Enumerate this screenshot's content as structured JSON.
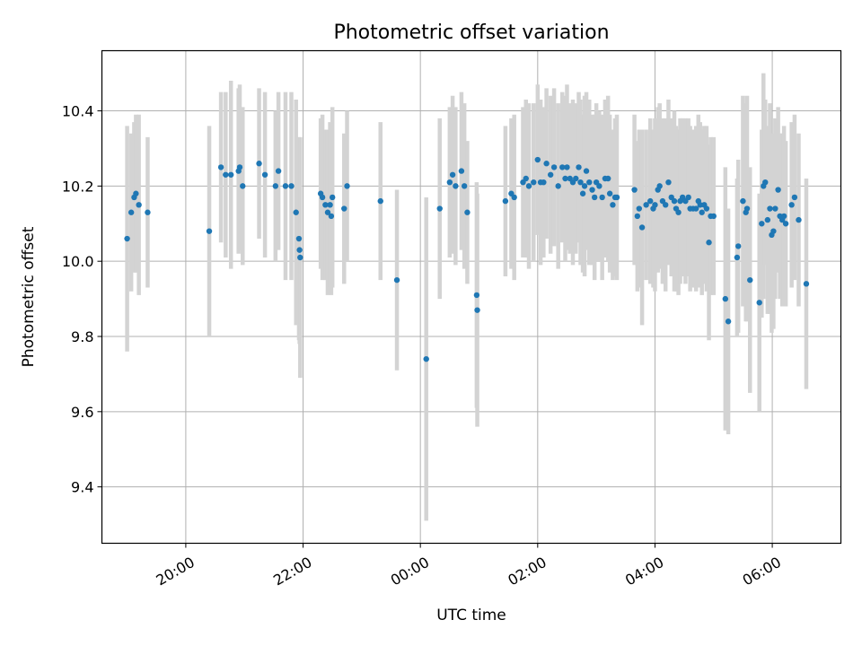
{
  "chart_data": {
    "type": "scatter",
    "title": "Photometric offset variation",
    "xlabel": "UTC time",
    "ylabel": "Photometric offset",
    "grid": true,
    "x_range_hours": [
      18.57,
      31.17
    ],
    "ylim": [
      9.25,
      10.56
    ],
    "x_ticks": [
      {
        "hour": 20,
        "label": "20:00"
      },
      {
        "hour": 22,
        "label": "22:00"
      },
      {
        "hour": 24,
        "label": "00:00"
      },
      {
        "hour": 26,
        "label": "02:00"
      },
      {
        "hour": 28,
        "label": "04:00"
      },
      {
        "hour": 30,
        "label": "06:00"
      }
    ],
    "y_ticks": [
      9.4,
      9.6,
      9.8,
      10.0,
      10.2,
      10.4
    ],
    "y_tick_labels": [
      "9.4",
      "9.6",
      "9.8",
      "10.0",
      "10.2",
      "10.4"
    ],
    "colors": {
      "point": "#1f77b4",
      "error_bar": "#d3d3d3",
      "grid": "#b0b0b0"
    },
    "series": [
      {
        "points": [
          [
            19.0,
            10.06,
            0.3
          ],
          [
            19.07,
            10.13,
            0.21
          ],
          [
            19.12,
            10.17,
            0.2
          ],
          [
            19.15,
            10.18,
            0.21
          ],
          [
            19.2,
            10.15,
            0.24
          ],
          [
            19.35,
            10.13,
            0.2
          ],
          [
            20.4,
            10.08,
            0.28
          ],
          [
            20.6,
            10.25,
            0.2
          ],
          [
            20.68,
            10.23,
            0.22
          ],
          [
            20.77,
            10.23,
            0.25
          ],
          [
            20.9,
            10.24,
            0.22
          ],
          [
            20.92,
            10.25,
            0.22
          ],
          [
            20.97,
            10.2,
            0.21
          ],
          [
            21.25,
            10.26,
            0.2
          ],
          [
            21.35,
            10.23,
            0.22
          ],
          [
            21.53,
            10.2,
            0.2
          ],
          [
            21.58,
            10.24,
            0.21
          ],
          [
            21.7,
            10.2,
            0.25
          ],
          [
            21.8,
            10.2,
            0.25
          ],
          [
            21.88,
            10.13,
            0.3
          ],
          [
            21.93,
            10.06,
            0.27
          ],
          [
            21.94,
            10.03,
            0.25
          ],
          [
            21.95,
            10.01,
            0.32
          ],
          [
            22.3,
            10.18,
            0.2
          ],
          [
            22.33,
            10.17,
            0.22
          ],
          [
            22.38,
            10.15,
            0.2
          ],
          [
            22.42,
            10.13,
            0.22
          ],
          [
            22.46,
            10.15,
            0.22
          ],
          [
            22.48,
            10.12,
            0.21
          ],
          [
            22.5,
            10.17,
            0.24
          ],
          [
            22.7,
            10.14,
            0.2
          ],
          [
            22.75,
            10.2,
            0.2
          ],
          [
            23.32,
            10.16,
            0.21
          ],
          [
            23.6,
            9.95,
            0.24
          ],
          [
            24.1,
            9.74,
            0.43
          ],
          [
            24.33,
            10.14,
            0.24
          ],
          [
            24.5,
            10.21,
            0.2
          ],
          [
            24.55,
            10.23,
            0.21
          ],
          [
            24.6,
            10.2,
            0.21
          ],
          [
            24.7,
            10.24,
            0.21
          ],
          [
            24.75,
            10.2,
            0.22
          ],
          [
            24.8,
            10.13,
            0.19
          ],
          [
            24.96,
            9.91,
            0.3
          ],
          [
            24.97,
            9.87,
            0.31
          ],
          [
            25.45,
            10.16,
            0.2
          ],
          [
            25.55,
            10.18,
            0.2
          ],
          [
            25.6,
            10.17,
            0.22
          ],
          [
            25.75,
            10.21,
            0.2
          ],
          [
            25.8,
            10.22,
            0.21
          ],
          [
            25.85,
            10.2,
            0.22
          ],
          [
            25.93,
            10.21,
            0.21
          ],
          [
            26.0,
            10.27,
            0.2
          ],
          [
            26.05,
            10.21,
            0.22
          ],
          [
            26.1,
            10.21,
            0.2
          ],
          [
            26.15,
            10.26,
            0.2
          ],
          [
            26.22,
            10.23,
            0.21
          ],
          [
            26.28,
            10.25,
            0.21
          ],
          [
            26.35,
            10.2,
            0.22
          ],
          [
            26.42,
            10.25,
            0.2
          ],
          [
            26.47,
            10.22,
            0.22
          ],
          [
            26.5,
            10.25,
            0.22
          ],
          [
            26.55,
            10.22,
            0.2
          ],
          [
            26.6,
            10.21,
            0.22
          ],
          [
            26.65,
            10.22,
            0.2
          ],
          [
            26.7,
            10.25,
            0.2
          ],
          [
            26.73,
            10.21,
            0.22
          ],
          [
            26.77,
            10.18,
            0.21
          ],
          [
            26.8,
            10.2,
            0.24
          ],
          [
            26.83,
            10.24,
            0.21
          ],
          [
            26.88,
            10.21,
            0.22
          ],
          [
            26.93,
            10.19,
            0.2
          ],
          [
            26.97,
            10.17,
            0.22
          ],
          [
            27.0,
            10.21,
            0.21
          ],
          [
            27.05,
            10.2,
            0.2
          ],
          [
            27.1,
            10.17,
            0.22
          ],
          [
            27.15,
            10.22,
            0.21
          ],
          [
            27.2,
            10.22,
            0.22
          ],
          [
            27.23,
            10.18,
            0.21
          ],
          [
            27.28,
            10.15,
            0.2
          ],
          [
            27.32,
            10.17,
            0.21
          ],
          [
            27.35,
            10.17,
            0.22
          ],
          [
            27.65,
            10.19,
            0.2
          ],
          [
            27.7,
            10.12,
            0.2
          ],
          [
            27.73,
            10.14,
            0.21
          ],
          [
            27.78,
            10.09,
            0.26
          ],
          [
            27.85,
            10.15,
            0.2
          ],
          [
            27.92,
            10.16,
            0.22
          ],
          [
            27.97,
            10.14,
            0.21
          ],
          [
            28.0,
            10.15,
            0.23
          ],
          [
            28.05,
            10.19,
            0.22
          ],
          [
            28.08,
            10.2,
            0.22
          ],
          [
            28.13,
            10.16,
            0.22
          ],
          [
            28.18,
            10.15,
            0.23
          ],
          [
            28.23,
            10.21,
            0.22
          ],
          [
            28.28,
            10.17,
            0.21
          ],
          [
            28.33,
            10.16,
            0.24
          ],
          [
            28.36,
            10.14,
            0.22
          ],
          [
            28.4,
            10.13,
            0.22
          ],
          [
            28.43,
            10.16,
            0.22
          ],
          [
            28.47,
            10.17,
            0.21
          ],
          [
            28.52,
            10.16,
            0.22
          ],
          [
            28.57,
            10.17,
            0.21
          ],
          [
            28.6,
            10.14,
            0.22
          ],
          [
            28.65,
            10.14,
            0.21
          ],
          [
            28.7,
            10.14,
            0.22
          ],
          [
            28.74,
            10.16,
            0.23
          ],
          [
            28.77,
            10.15,
            0.22
          ],
          [
            28.8,
            10.13,
            0.22
          ],
          [
            28.84,
            10.15,
            0.21
          ],
          [
            28.88,
            10.14,
            0.22
          ],
          [
            28.92,
            10.05,
            0.26
          ],
          [
            28.95,
            10.12,
            0.21
          ],
          [
            29.0,
            10.12,
            0.21
          ],
          [
            29.2,
            9.9,
            0.35
          ],
          [
            29.25,
            9.84,
            0.3
          ],
          [
            29.4,
            10.01,
            0.21
          ],
          [
            29.42,
            10.04,
            0.23
          ],
          [
            29.5,
            10.16,
            0.28
          ],
          [
            29.55,
            10.13,
            0.29
          ],
          [
            29.57,
            10.14,
            0.3
          ],
          [
            29.62,
            9.95,
            0.3
          ],
          [
            29.78,
            9.89,
            0.29
          ],
          [
            29.82,
            10.1,
            0.25
          ],
          [
            29.85,
            10.2,
            0.3
          ],
          [
            29.88,
            10.21,
            0.22
          ],
          [
            29.92,
            10.11,
            0.25
          ],
          [
            29.96,
            10.14,
            0.28
          ],
          [
            29.99,
            10.07,
            0.26
          ],
          [
            30.02,
            10.08,
            0.26
          ],
          [
            30.05,
            10.14,
            0.24
          ],
          [
            30.1,
            10.19,
            0.22
          ],
          [
            30.13,
            10.12,
            0.22
          ],
          [
            30.17,
            10.11,
            0.23
          ],
          [
            30.2,
            10.12,
            0.24
          ],
          [
            30.23,
            10.1,
            0.22
          ],
          [
            30.33,
            10.15,
            0.22
          ],
          [
            30.38,
            10.17,
            0.22
          ],
          [
            30.45,
            10.11,
            0.23
          ],
          [
            30.58,
            9.94,
            0.28
          ]
        ]
      }
    ]
  }
}
